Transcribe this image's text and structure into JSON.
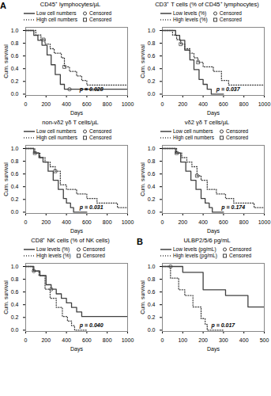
{
  "chart_data": [
    {
      "type": "line",
      "title": "CD45⁺ lymphocytes/µL",
      "xlabel": "Days",
      "ylabel": "Cum. survival",
      "xlim": [
        0,
        1000
      ],
      "ylim": [
        -0.02,
        1.05
      ],
      "xticks": [
        0,
        200,
        400,
        600,
        800,
        1000
      ],
      "yticks": [
        {
          "value": 0,
          "label": "0.0"
        },
        0.2,
        0.4,
        0.6,
        0.8,
        {
          "value": 1,
          "label": "1.0"
        }
      ],
      "series": [
        {
          "name": "Low cell numbers",
          "type": "line",
          "line_style": "solid",
          "color": "#404040",
          "x": [
            0,
            30,
            80,
            120,
            160,
            210,
            250,
            290,
            340,
            380,
            420,
            430,
            1000
          ],
          "values": [
            1.0,
            1.0,
            0.923,
            0.846,
            0.769,
            0.615,
            0.462,
            0.308,
            0.154,
            0.077,
            0.077,
            0.077,
            0.077
          ]
        },
        {
          "name": "Censored",
          "type": "scatter",
          "marker": "circle",
          "color": "#404040",
          "x": [
            430
          ],
          "values": [
            0.077
          ]
        },
        {
          "name": "High cell numbers",
          "type": "line",
          "line_style": "dotted",
          "color": "#404040",
          "x": [
            0,
            100,
            150,
            190,
            240,
            280,
            350,
            380,
            430,
            500,
            550,
            600,
            700,
            850,
            1000
          ],
          "values": [
            1.0,
            0.929,
            0.857,
            0.786,
            0.714,
            0.643,
            0.571,
            0.429,
            0.357,
            0.286,
            0.214,
            0.143,
            0.143,
            0.143,
            0.143
          ]
        },
        {
          "name": "Censored",
          "type": "scatter",
          "marker": "square",
          "color": "#404040",
          "x": [
            175,
            380
          ],
          "values": [
            0.857,
            0.429
          ]
        }
      ],
      "annotations": [
        {
          "text": "p = 0.028",
          "x": 530,
          "y": 0.05
        },
        {
          "text": "A"
        }
      ]
    },
    {
      "type": "line",
      "title": "CD3⁺ T cells (% of CD45⁺ lymphocytes)",
      "xlabel": "Days",
      "ylabel": "Cum. survival",
      "xlim": [
        0,
        1000
      ],
      "ylim": [
        -0.02,
        1.05
      ],
      "xticks": [
        0,
        200,
        400,
        600,
        800,
        1000
      ],
      "yticks": [
        {
          "value": 0,
          "label": "0.0"
        },
        0.2,
        0.4,
        0.6,
        0.8,
        {
          "value": 1,
          "label": "1.0"
        }
      ],
      "series": [
        {
          "name": "Low levels (%)",
          "type": "line",
          "line_style": "solid",
          "color": "#404040",
          "x": [
            0,
            80,
            130,
            170,
            220,
            270,
            310,
            360,
            400,
            440,
            480,
            510,
            600
          ],
          "values": [
            1.0,
            1.0,
            0.923,
            0.846,
            0.692,
            0.538,
            0.385,
            0.231,
            0.154,
            0.077,
            0.0,
            0.0,
            0.0
          ]
        },
        {
          "name": "Censored",
          "type": "scatter",
          "marker": "circle",
          "color": "#404040",
          "x": [],
          "values": []
        },
        {
          "name": "High levels (%)",
          "type": "line",
          "line_style": "dotted",
          "color": "#404040",
          "x": [
            0,
            100,
            140,
            180,
            220,
            270,
            310,
            350,
            400,
            500,
            580,
            650,
            750,
            900,
            1000
          ],
          "values": [
            1.0,
            0.929,
            0.857,
            0.786,
            0.714,
            0.643,
            0.571,
            0.5,
            0.429,
            0.357,
            0.214,
            0.143,
            0.143,
            0.143,
            0.143
          ]
        },
        {
          "name": "Censored",
          "type": "scatter",
          "marker": "square",
          "color": "#404040",
          "x": [
            180,
            350
          ],
          "values": [
            0.786,
            0.5
          ]
        }
      ],
      "annotations": [
        {
          "text": "p = 0.037",
          "x": 530,
          "y": 0.05
        }
      ]
    },
    {
      "type": "line",
      "title": "non-vδ2 γδ T cells/µL",
      "xlabel": "Days",
      "ylabel": "Cum. survival",
      "xlim": [
        0,
        1000
      ],
      "ylim": [
        -0.02,
        1.05
      ],
      "xticks": [
        0,
        200,
        400,
        600,
        800,
        1000
      ],
      "yticks": [
        {
          "value": 0,
          "label": "0.0"
        },
        0.2,
        0.4,
        0.6,
        0.8,
        {
          "value": 1,
          "label": "1.0"
        }
      ],
      "series": [
        {
          "name": "Low cell numbers",
          "type": "line",
          "line_style": "solid",
          "color": "#404040",
          "x": [
            0,
            80,
            130,
            170,
            220,
            270,
            320,
            370,
            400,
            440,
            470,
            500,
            600
          ],
          "values": [
            1.0,
            0.929,
            0.857,
            0.786,
            0.643,
            0.5,
            0.357,
            0.214,
            0.143,
            0.071,
            0.0,
            0.0,
            0.0
          ]
        },
        {
          "name": "Censored",
          "type": "scatter",
          "marker": "circle",
          "color": "#404040",
          "x": [],
          "values": []
        },
        {
          "name": "High cell numbers",
          "type": "line",
          "line_style": "dotted",
          "color": "#404040",
          "x": [
            0,
            30,
            90,
            140,
            190,
            240,
            290,
            340,
            400,
            500,
            600,
            700,
            800,
            900,
            1000
          ],
          "values": [
            1.0,
            1.0,
            0.929,
            0.857,
            0.786,
            0.714,
            0.643,
            0.429,
            0.357,
            0.286,
            0.214,
            0.143,
            0.143,
            0.071,
            0.071
          ]
        },
        {
          "name": "Censored",
          "type": "scatter",
          "marker": "square",
          "color": "#404040",
          "x": [
            90,
            290
          ],
          "values": [
            0.929,
            0.643
          ]
        }
      ],
      "annotations": [
        {
          "text": "p = 0.031",
          "x": 530,
          "y": 0.05
        }
      ]
    },
    {
      "type": "line",
      "title": "vδ2 γδ T cells/µL",
      "xlabel": "Days",
      "ylabel": "Cum. survival",
      "xlim": [
        0,
        1000
      ],
      "ylim": [
        -0.02,
        1.05
      ],
      "xticks": [
        0,
        200,
        400,
        600,
        800,
        1000
      ],
      "yticks": [
        {
          "value": 0,
          "label": "0.0"
        },
        0.2,
        0.4,
        0.6,
        0.8,
        {
          "value": 1,
          "label": "1.0"
        }
      ],
      "series": [
        {
          "name": "Low cell numbers",
          "type": "line",
          "line_style": "solid",
          "color": "#404040",
          "x": [
            0,
            80,
            130,
            180,
            230,
            280,
            330,
            380,
            420,
            460,
            490,
            600
          ],
          "values": [
            1.0,
            1.0,
            0.929,
            0.786,
            0.643,
            0.5,
            0.357,
            0.214,
            0.143,
            0.071,
            0.0,
            0.0
          ]
        },
        {
          "name": "Censored",
          "type": "scatter",
          "marker": "circle",
          "color": "#404040",
          "x": [],
          "values": []
        },
        {
          "name": "High cell numbers",
          "type": "line",
          "line_style": "dotted",
          "color": "#404040",
          "x": [
            0,
            90,
            140,
            190,
            240,
            290,
            340,
            380,
            440,
            530,
            620,
            700,
            800,
            900,
            1000
          ],
          "values": [
            1.0,
            1.0,
            0.929,
            0.857,
            0.786,
            0.714,
            0.571,
            0.5,
            0.357,
            0.286,
            0.214,
            0.143,
            0.143,
            0.071,
            0.071
          ]
        },
        {
          "name": "Censored",
          "type": "scatter",
          "marker": "square",
          "color": "#404040",
          "x": [
            140,
            340
          ],
          "values": [
            0.929,
            0.571
          ]
        }
      ],
      "annotations": [
        {
          "text": "p = 0.174",
          "x": 580,
          "y": 0.05
        }
      ]
    },
    {
      "type": "line",
      "title": "CD8⁺ NK cells (% of NK cells)",
      "xlabel": "Days",
      "ylabel": "Cum. survival",
      "xlim": [
        0,
        1000
      ],
      "ylim": [
        -0.02,
        1.05
      ],
      "xticks": [
        0,
        200,
        400,
        600,
        800,
        1000
      ],
      "yticks": [
        {
          "value": 0,
          "label": "0.0"
        },
        0.2,
        0.4,
        0.6,
        0.8,
        {
          "value": 1,
          "label": "1.0"
        }
      ],
      "series": [
        {
          "name": "Low levels (%)",
          "type": "line",
          "line_style": "solid",
          "color": "#404040",
          "x": [
            0,
            20,
            80,
            140,
            200,
            250,
            300,
            350,
            400,
            450,
            500,
            550,
            600,
            700,
            800,
            900,
            1000
          ],
          "values": [
            1.0,
            1.0,
            0.929,
            0.857,
            0.714,
            0.643,
            0.571,
            0.5,
            0.429,
            0.357,
            0.286,
            0.214,
            0.214,
            0.214,
            0.214,
            0.214,
            0.214
          ]
        },
        {
          "name": "Censored",
          "type": "scatter",
          "marker": "circle",
          "color": "#404040",
          "x": [
            80,
            250
          ],
          "values": [
            0.929,
            0.643
          ]
        },
        {
          "name": "High levels (%)",
          "type": "line",
          "line_style": "dotted",
          "color": "#404040",
          "x": [
            0,
            70,
            130,
            190,
            240,
            300,
            360,
            410,
            450,
            480,
            520,
            600
          ],
          "values": [
            1.0,
            0.929,
            0.857,
            0.643,
            0.5,
            0.357,
            0.214,
            0.143,
            0.071,
            0.0,
            0.0,
            0.0
          ]
        },
        {
          "name": "Censored",
          "type": "scatter",
          "marker": "square",
          "color": "#404040",
          "x": [],
          "values": []
        }
      ],
      "annotations": [
        {
          "text": "p = 0.040",
          "x": 530,
          "y": 0.05
        }
      ]
    },
    {
      "type": "line",
      "title": "ULBP2/5/6 pg/mL",
      "xlabel": "Days",
      "ylabel": "Cum. survival",
      "xlim": [
        0,
        500
      ],
      "ylim": [
        -0.02,
        1.05
      ],
      "xticks": [
        0,
        100,
        200,
        300,
        400,
        500
      ],
      "yticks": [
        {
          "value": 0,
          "label": "0.0"
        },
        0.2,
        0.4,
        0.6,
        0.8,
        {
          "value": 1,
          "label": "1.0"
        }
      ],
      "series": [
        {
          "name": "Low levels (pg/mL)",
          "type": "line",
          "line_style": "solid",
          "color": "#404040",
          "x": [
            0,
            40,
            100,
            200,
            310,
            400,
            420,
            500
          ],
          "values": [
            1.0,
            1.0,
            0.909,
            0.636,
            0.545,
            0.545,
            0.364,
            0.364
          ]
        },
        {
          "name": "Censored",
          "type": "scatter",
          "marker": "circle",
          "color": "#404040",
          "x": [
            40
          ],
          "values": [
            1.0
          ]
        },
        {
          "name": "High levels (pg/mL)",
          "type": "line",
          "line_style": "dotted",
          "color": "#404040",
          "x": [
            0,
            40,
            80,
            110,
            150,
            190,
            210,
            220,
            260,
            300
          ],
          "values": [
            1.0,
            0.818,
            0.636,
            0.545,
            0.364,
            0.182,
            0.091,
            0.0,
            0.0,
            0.0
          ]
        },
        {
          "name": "Censored",
          "type": "scatter",
          "marker": "square",
          "color": "#404040",
          "x": [],
          "values": []
        }
      ],
      "annotations": [
        {
          "text": "p = 0.017",
          "x": 240,
          "y": 0.05
        },
        {
          "text": "B"
        }
      ]
    }
  ]
}
